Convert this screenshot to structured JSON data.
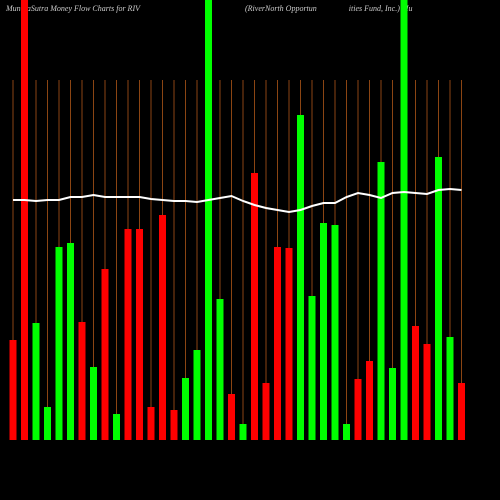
{
  "chart_data": {
    "type": "bar",
    "title": "MunafaSutra  Money Flow  Charts for RIV",
    "subtitle": "(RiverNorth Opportun                ities Fund, Inc.) Mu",
    "categories": [
      null,
      null,
      null,
      null,
      null,
      null,
      null,
      null,
      null,
      null,
      null,
      null,
      null,
      null,
      null,
      null,
      null,
      null,
      null,
      null,
      null,
      null,
      null,
      null,
      null,
      null,
      null,
      null,
      null,
      null,
      null,
      null,
      null,
      null,
      null,
      null,
      null,
      null,
      null,
      null
    ],
    "values": [
      100,
      440,
      117,
      33,
      193,
      197,
      118,
      73,
      171,
      26,
      211,
      211,
      33,
      225,
      30,
      62,
      90,
      440,
      141,
      46,
      16,
      267,
      57,
      193,
      192,
      325,
      144,
      217,
      215,
      16,
      61,
      79,
      278,
      72,
      440,
      114,
      96,
      283,
      103,
      57
    ],
    "colors": [
      "#ff0000",
      "#ff0000",
      "#00ff00",
      "#00ff00",
      "#00ff00",
      "#00ff00",
      "#ff0000",
      "#00ff00",
      "#ff0000",
      "#00ff00",
      "#ff0000",
      "#ff0000",
      "#ff0000",
      "#ff0000",
      "#ff0000",
      "#00ff00",
      "#00ff00",
      "#00ff00",
      "#00ff00",
      "#ff0000",
      "#00ff00",
      "#ff0000",
      "#ff0000",
      "#ff0000",
      "#ff0000",
      "#00ff00",
      "#00ff00",
      "#00ff00",
      "#00ff00",
      "#00ff00",
      "#ff0000",
      "#ff0000",
      "#00ff00",
      "#00ff00",
      "#00ff00",
      "#ff0000",
      "#ff0000",
      "#00ff00",
      "#00ff00",
      "#ff0000"
    ],
    "line": {
      "color": "#ffffff",
      "values": [
        240,
        240,
        239,
        240,
        240,
        243,
        243,
        245,
        243,
        243,
        243,
        243,
        241,
        240,
        239,
        239,
        238,
        240,
        242,
        244,
        239,
        235,
        232,
        230,
        228,
        230,
        234,
        237,
        237,
        243,
        247,
        245,
        242,
        247,
        248,
        247,
        246,
        250,
        251,
        250
      ]
    },
    "grid_color": "#8b4513",
    "ylim": [
      0,
      440
    ]
  }
}
